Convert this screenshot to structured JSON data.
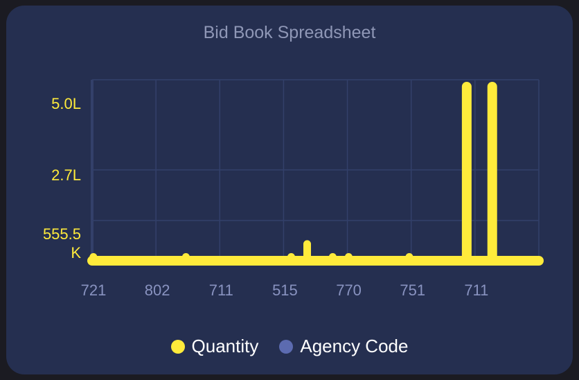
{
  "colors": {
    "quantity": "#ffeb3b",
    "agency_code": "#5c6bb0",
    "grid": "#33406a",
    "axis_tick_text": "#8993c0"
  },
  "chart_data": {
    "type": "bar",
    "title": "Bid Book Spreadsheet",
    "xlabel": "",
    "ylabel": "",
    "categories": [
      "721",
      "802",
      "711",
      "515",
      "770",
      "751",
      "711"
    ],
    "x_tick_labels": [
      "721",
      "802",
      "711",
      "515",
      "770",
      "751",
      "711"
    ],
    "y_tick_labels": [
      "555.5\nK",
      "2.7L",
      "5.0L"
    ],
    "ylim": [
      0,
      500000
    ],
    "grid": true,
    "legend_position": "bottom",
    "series": [
      {
        "name": "Quantity",
        "color": "#ffeb3b",
        "points": [
          {
            "x": 0.0,
            "y": 0
          },
          {
            "x": 1.45,
            "y": 2000
          },
          {
            "x": 3.1,
            "y": 2000
          },
          {
            "x": 3.35,
            "y": 45000
          },
          {
            "x": 3.75,
            "y": 2000
          },
          {
            "x": 4.0,
            "y": 2000
          },
          {
            "x": 4.95,
            "y": 2000
          },
          {
            "x": 5.85,
            "y": 500000
          },
          {
            "x": 6.25,
            "y": 500000
          }
        ]
      },
      {
        "name": "Agency Code",
        "color": "#5c6bb0",
        "points": []
      }
    ]
  },
  "legend": {
    "items": [
      {
        "label": "Quantity",
        "color": "#ffeb3b"
      },
      {
        "label": "Agency Code",
        "color": "#5c6bb0"
      }
    ]
  }
}
